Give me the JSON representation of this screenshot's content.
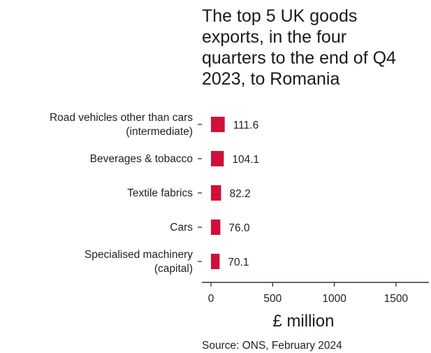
{
  "chart_data": {
    "type": "bar",
    "orientation": "horizontal",
    "title_lines": [
      "The top 5 UK goods",
      "exports, in the four",
      "quarters to the end of Q4",
      "2023, to Romania"
    ],
    "categories": [
      [
        "Road vehicles other than cars",
        "(intermediate)"
      ],
      [
        "Beverages & tobacco"
      ],
      [
        "Textile fabrics"
      ],
      [
        "Cars"
      ],
      [
        "Specialised machinery",
        "(capital)"
      ]
    ],
    "values": [
      111.6,
      104.1,
      82.2,
      76.0,
      70.1
    ],
    "value_labels": [
      "111.6",
      "104.1",
      "82.2",
      "76.0",
      "70.1"
    ],
    "xlabel": "£ million",
    "xlim": [
      0,
      1750
    ],
    "xticks": [
      0,
      500,
      1000,
      1500
    ],
    "xtick_labels": [
      "0",
      "500",
      "1000",
      "1500"
    ],
    "grid": false,
    "legend": "none",
    "bar_color": "#d0103a",
    "source": "Source: ONS, February 2024"
  }
}
